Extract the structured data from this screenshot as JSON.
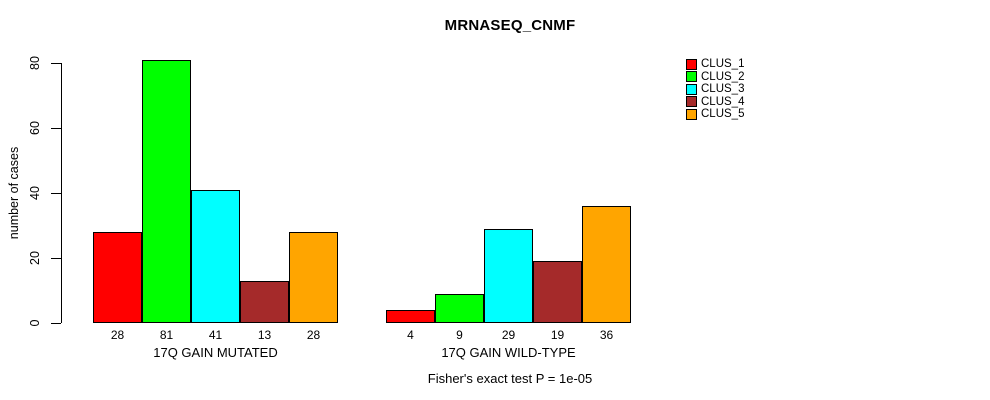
{
  "chart_data": {
    "type": "bar",
    "title": "MRNASEQ_CNMF",
    "ylabel": "number of cases",
    "subtitle": "Fisher's exact test P = 1e-05",
    "ylim": [
      0,
      81
    ],
    "yticks": [
      0,
      20,
      40,
      60,
      80
    ],
    "grid": false,
    "legend_position": "right",
    "bar_value_labels": true,
    "series": [
      {
        "name": "CLUS_1",
        "color": "#FF0000"
      },
      {
        "name": "CLUS_2",
        "color": "#00FF00"
      },
      {
        "name": "CLUS_3",
        "color": "#00FFFF"
      },
      {
        "name": "CLUS_4",
        "color": "#A52A2A"
      },
      {
        "name": "CLUS_5",
        "color": "#FFA500"
      }
    ],
    "categories": [
      "17Q GAIN MUTATED",
      "17Q GAIN WILD-TYPE"
    ],
    "groups": [
      {
        "label": "17Q GAIN MUTATED",
        "values": [
          28,
          81,
          41,
          13,
          28
        ]
      },
      {
        "label": "17Q GAIN WILD-TYPE",
        "values": [
          4,
          9,
          29,
          19,
          36
        ]
      }
    ]
  }
}
